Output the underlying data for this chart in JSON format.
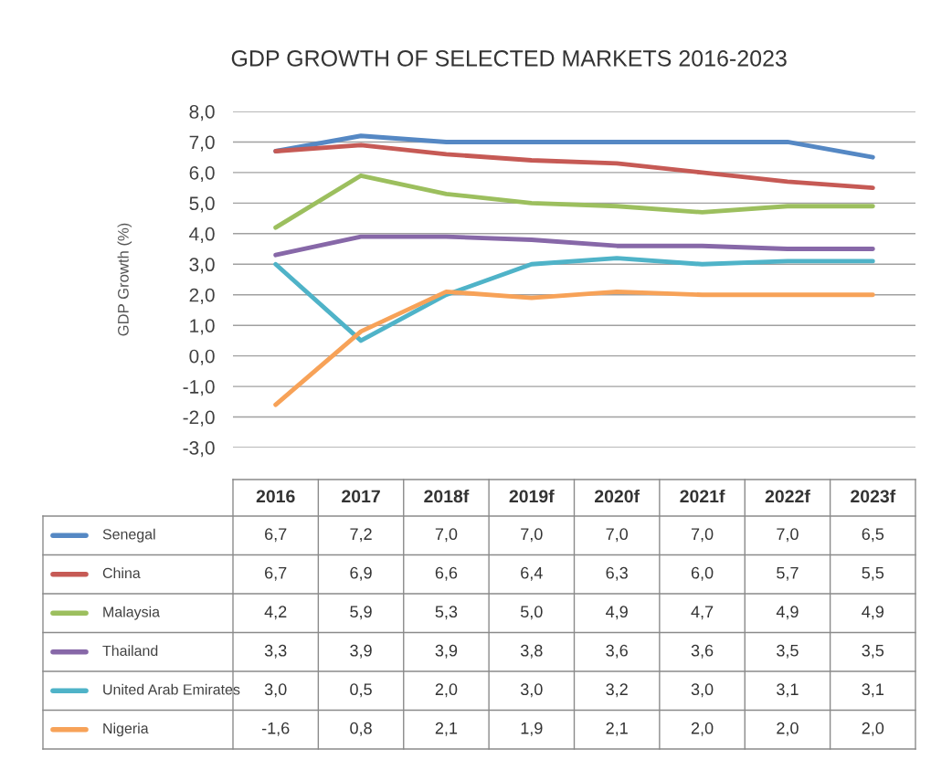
{
  "chart_data": {
    "type": "line",
    "title": "GDP GROWTH OF SELECTED MARKETS 2016-2023",
    "ylabel": "GDP Growth (%)",
    "categories": [
      "2016",
      "2017",
      "2018f",
      "2019f",
      "2020f",
      "2021f",
      "2022f",
      "2023f"
    ],
    "series": [
      {
        "name": "Senegal",
        "color": "#5588c4",
        "values": [
          6.7,
          7.2,
          7.0,
          7.0,
          7.0,
          7.0,
          7.0,
          6.5
        ],
        "value_labels": [
          "6,7",
          "7,2",
          "7,0",
          "7,0",
          "7,0",
          "7,0",
          "7,0",
          "6,5"
        ]
      },
      {
        "name": "China",
        "color": "#c65a55",
        "values": [
          6.7,
          6.9,
          6.6,
          6.4,
          6.3,
          6.0,
          5.7,
          5.5
        ],
        "value_labels": [
          "6,7",
          "6,9",
          "6,6",
          "6,4",
          "6,3",
          "6,0",
          "5,7",
          "5,5"
        ]
      },
      {
        "name": "Malaysia",
        "color": "#9cbf5e",
        "values": [
          4.2,
          5.9,
          5.3,
          5.0,
          4.9,
          4.7,
          4.9,
          4.9
        ],
        "value_labels": [
          "4,2",
          "5,9",
          "5,3",
          "5,0",
          "4,9",
          "4,7",
          "4,9",
          "4,9"
        ]
      },
      {
        "name": "Thailand",
        "color": "#8768a8",
        "values": [
          3.3,
          3.9,
          3.9,
          3.8,
          3.6,
          3.6,
          3.5,
          3.5
        ],
        "value_labels": [
          "3,3",
          "3,9",
          "3,9",
          "3,8",
          "3,6",
          "3,6",
          "3,5",
          "3,5"
        ]
      },
      {
        "name": "United Arab Emirates",
        "color": "#4fb3c8",
        "values": [
          3.0,
          0.5,
          2.0,
          3.0,
          3.2,
          3.0,
          3.1,
          3.1
        ],
        "value_labels": [
          "3,0",
          "0,5",
          "2,0",
          "3,0",
          "3,2",
          "3,0",
          "3,1",
          "3,1"
        ]
      },
      {
        "name": "Nigeria",
        "color": "#f7a258",
        "values": [
          -1.6,
          0.8,
          2.1,
          1.9,
          2.1,
          2.0,
          2.0,
          2.0
        ],
        "value_labels": [
          "-1,6",
          "0,8",
          "2,1",
          "1,9",
          "2,1",
          "2,0",
          "2,0",
          "2,0"
        ]
      }
    ],
    "ylim": [
      -3,
      8
    ],
    "yticks": [
      {
        "value": -3,
        "label": "-3,0"
      },
      {
        "value": -2,
        "label": "-2,0"
      },
      {
        "value": -1,
        "label": "-1,0"
      },
      {
        "value": 0,
        "label": "0,0"
      },
      {
        "value": 1,
        "label": "1,0"
      },
      {
        "value": 2,
        "label": "2,0"
      },
      {
        "value": 3,
        "label": "3,0"
      },
      {
        "value": 4,
        "label": "4,0"
      },
      {
        "value": 5,
        "label": "5,0"
      },
      {
        "value": 6,
        "label": "6,0"
      },
      {
        "value": 7,
        "label": "7,0"
      },
      {
        "value": 8,
        "label": "8,0"
      }
    ],
    "grid": "y",
    "legend": "bottom",
    "marker": "none",
    "line_style": "solid",
    "tick_labels": "y"
  }
}
